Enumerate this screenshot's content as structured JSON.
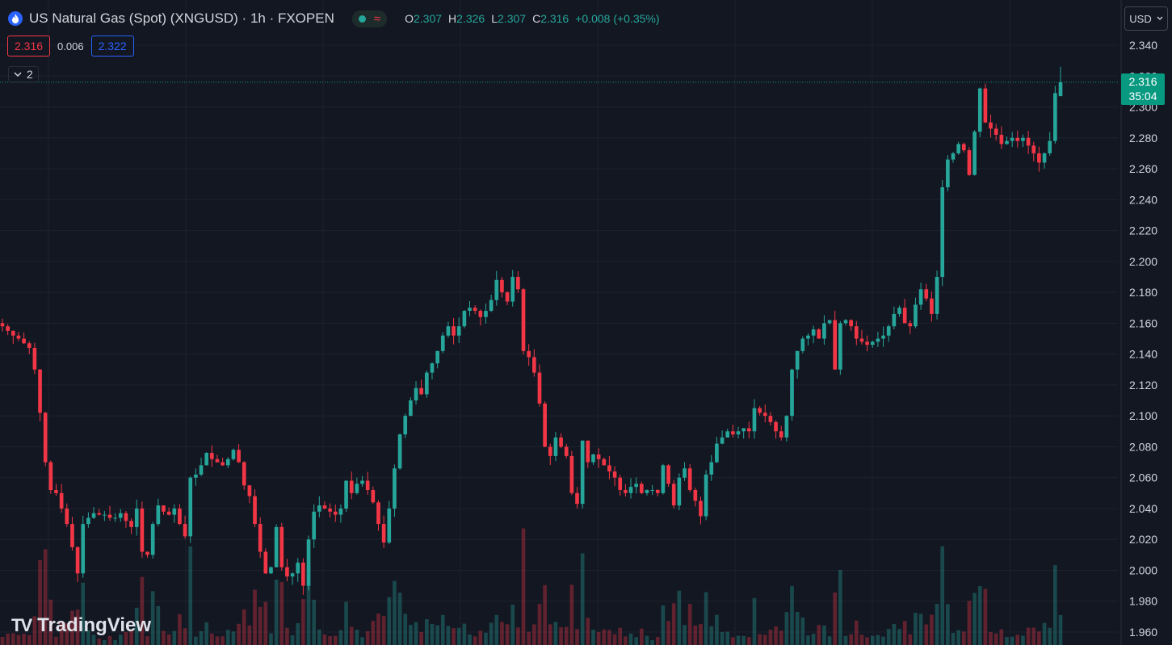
{
  "header": {
    "title": "US Natural Gas (Spot) (XNGUSD) · 1h · FXOPEN",
    "ohlc": {
      "o_label": "O",
      "o": "2.307",
      "h_label": "H",
      "h": "2.326",
      "l_label": "L",
      "l": "2.307",
      "c_label": "C",
      "c": "2.316",
      "change": "+0.008 (+0.35%)"
    }
  },
  "quote": {
    "bid": "2.316",
    "spread": "0.006",
    "ask": "2.322"
  },
  "collapse_label": "2",
  "currency": "USD",
  "last_price": {
    "price": "2.316",
    "countdown": "35:04"
  },
  "brand": "TradingView",
  "colors": {
    "up": "#26a69a",
    "down": "#f23645",
    "background": "#131722",
    "grid": "#1e222d",
    "axis_text": "#d1d4dc"
  },
  "chart_data": {
    "type": "candlestick",
    "symbol": "XNGUSD",
    "interval": "1h",
    "ylim": [
      1.96,
      2.34
    ],
    "y_ticks": [
      "1.960",
      "1.980",
      "2.000",
      "2.020",
      "2.040",
      "2.060",
      "2.080",
      "2.100",
      "2.120",
      "2.140",
      "2.160",
      "2.180",
      "2.200",
      "2.220",
      "2.240",
      "2.260",
      "2.280",
      "2.300",
      "2.320",
      "2.340"
    ],
    "last_price": 2.316,
    "grid": true,
    "series": [
      {
        "name": "",
        "close": [
          2.158,
          2.155,
          2.152,
          2.15,
          2.147,
          2.144,
          2.13,
          2.102,
          2.07,
          2.052,
          2.05,
          2.04,
          2.03,
          2.015,
          1.998,
          2.03,
          2.034,
          2.037,
          2.036,
          2.036,
          2.034,
          2.034,
          2.037,
          2.032,
          2.028,
          2.04,
          2.012,
          2.01,
          2.03,
          2.042,
          2.038,
          2.036,
          2.04,
          2.03,
          2.022,
          2.06,
          2.062,
          2.068,
          2.076,
          2.072,
          2.07,
          2.068,
          2.072,
          2.078,
          2.07,
          2.055,
          2.048,
          2.03,
          2.012,
          1.998,
          2.002,
          2.028,
          2.002,
          1.996,
          1.998,
          2.005,
          1.99,
          2.02,
          2.038,
          2.042,
          2.04,
          2.038,
          2.036,
          2.04,
          2.058,
          2.05,
          2.056,
          2.058,
          2.052,
          2.044,
          2.03,
          2.018,
          2.04,
          2.066,
          2.088,
          2.1,
          2.11,
          2.118,
          2.114,
          2.128,
          2.134,
          2.142,
          2.152,
          2.158,
          2.152,
          2.158,
          2.168,
          2.17,
          2.168,
          2.164,
          2.168,
          2.175,
          2.188,
          2.18,
          2.174,
          2.19,
          2.182,
          2.142,
          2.138,
          2.128,
          2.108,
          2.08,
          2.074,
          2.086,
          2.08,
          2.074,
          2.05,
          2.043,
          2.084,
          2.07,
          2.075,
          2.072,
          2.068,
          2.064,
          2.06,
          2.052,
          2.05,
          2.054,
          2.056,
          2.05,
          2.052,
          2.052,
          2.05,
          2.068,
          2.056,
          2.042,
          2.06,
          2.066,
          2.052,
          2.045,
          2.035,
          2.062,
          2.07,
          2.082,
          2.086,
          2.09,
          2.088,
          2.09,
          2.092,
          2.09,
          2.105,
          2.102,
          2.1,
          2.096,
          2.09,
          2.086,
          2.1,
          2.13,
          2.142,
          2.15,
          2.152,
          2.156,
          2.15,
          2.16,
          2.162,
          2.13,
          2.16,
          2.162,
          2.158,
          2.15,
          2.148,
          2.146,
          2.148,
          2.15,
          2.152,
          2.158,
          2.166,
          2.17,
          2.16,
          2.158,
          2.172,
          2.182,
          2.176,
          2.166,
          2.19,
          2.248,
          2.266,
          2.27,
          2.276,
          2.272,
          2.256,
          2.284,
          2.312,
          2.29,
          2.286,
          2.282,
          2.276,
          2.278,
          2.28,
          2.278,
          2.28,
          2.275,
          2.27,
          2.264,
          2.27,
          2.278,
          2.309,
          2.316
        ],
        "last_open": 2.307,
        "last_high": 2.326,
        "last_low": 2.307
      }
    ]
  }
}
